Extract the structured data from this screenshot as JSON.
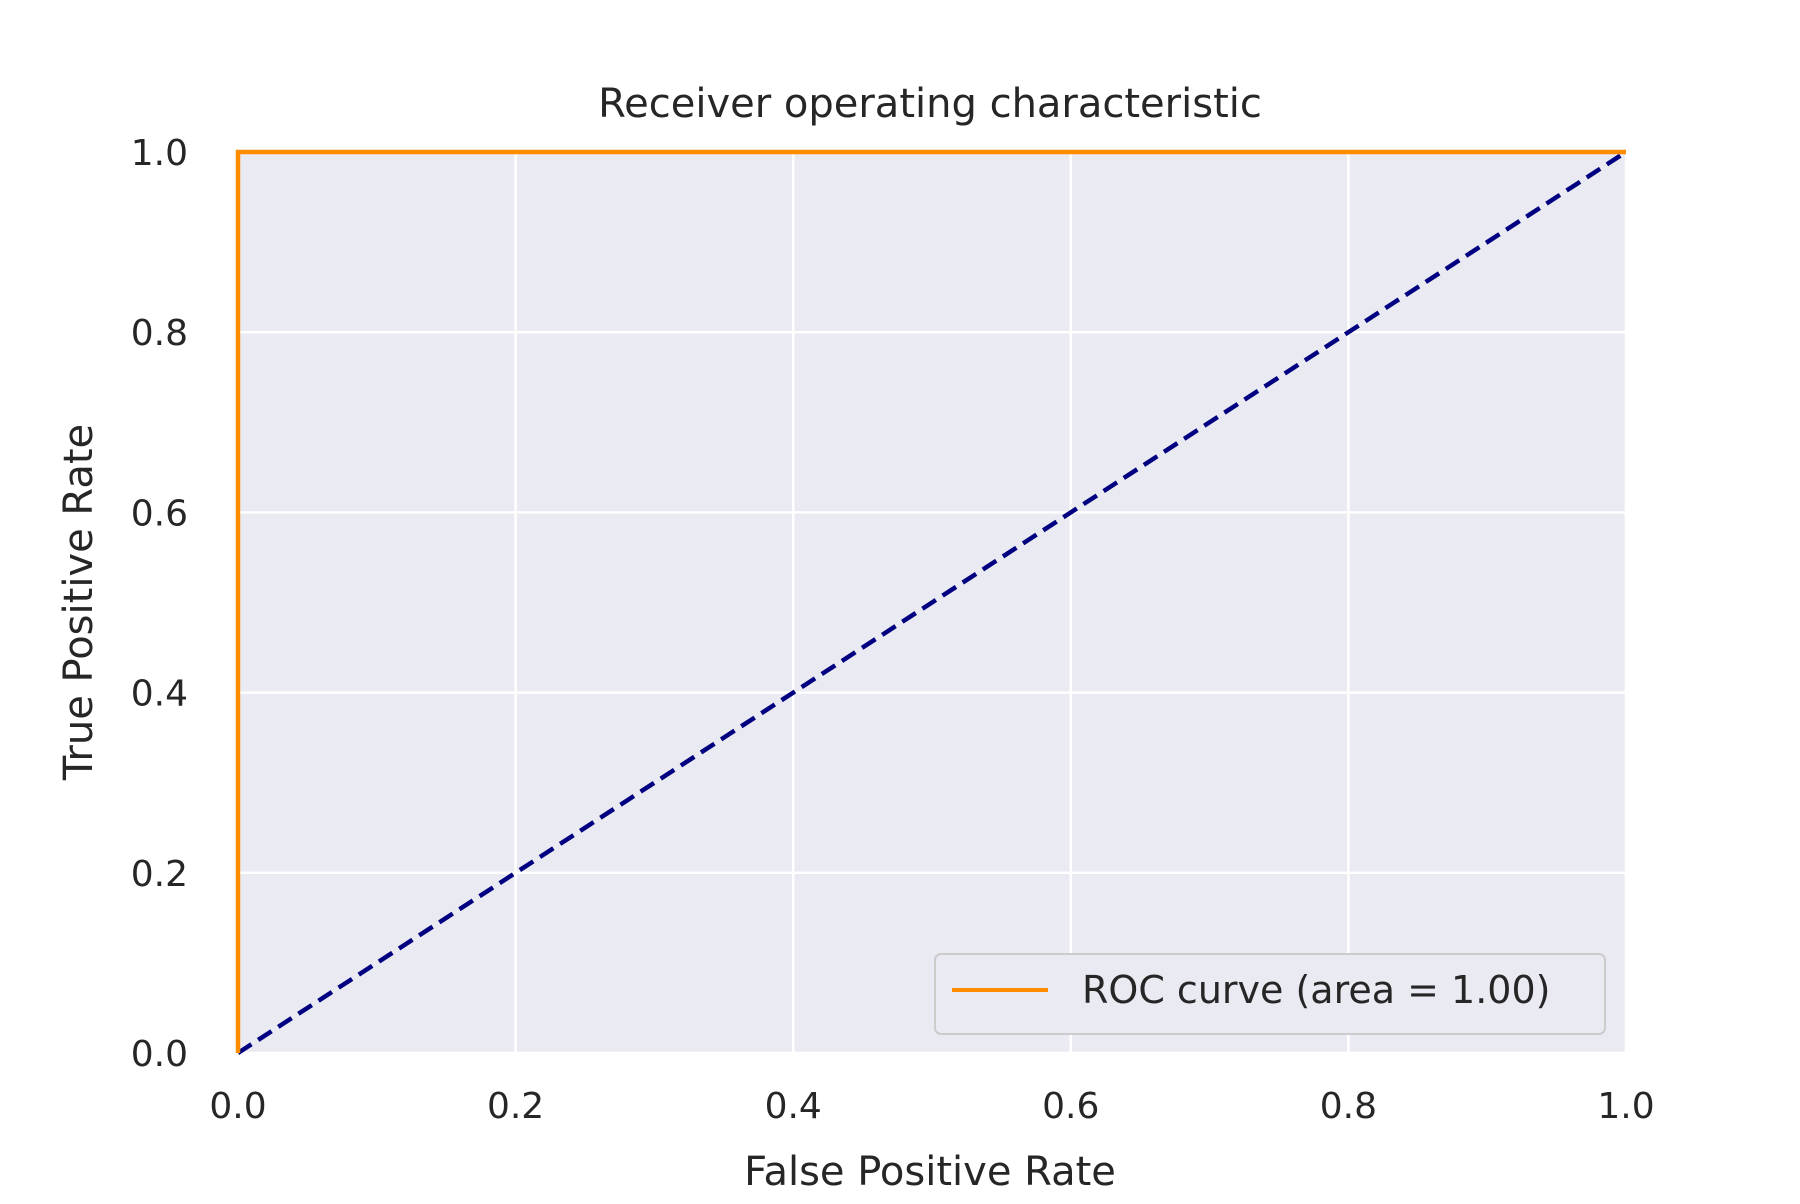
{
  "chart_data": {
    "type": "line",
    "title": "Receiver operating characteristic",
    "xlabel": "False Positive Rate",
    "ylabel": "True Positive Rate",
    "xlim": [
      0.0,
      1.0
    ],
    "ylim": [
      0.0,
      1.0
    ],
    "xticks": [
      0.0,
      0.2,
      0.4,
      0.6,
      0.8,
      1.0
    ],
    "yticks": [
      0.0,
      0.2,
      0.4,
      0.6,
      0.8,
      1.0
    ],
    "xtick_labels": [
      "0.0",
      "0.2",
      "0.4",
      "0.6",
      "0.8",
      "1.0"
    ],
    "ytick_labels": [
      "0.0",
      "0.2",
      "0.4",
      "0.6",
      "0.8",
      "1.0"
    ],
    "grid": true,
    "legend_position": "lower-right",
    "background_color": "#eaeaf2",
    "series": [
      {
        "name": "ROC curve (area = 1.00)",
        "x": [
          0.0,
          0.0,
          1.0
        ],
        "y": [
          0.0,
          1.0,
          1.0
        ],
        "color": "#ff8c00",
        "linestyle": "solid"
      },
      {
        "x": [
          0.0,
          1.0
        ],
        "y": [
          0.0,
          1.0
        ],
        "color": "#000080",
        "linestyle": "dashed"
      }
    ]
  }
}
